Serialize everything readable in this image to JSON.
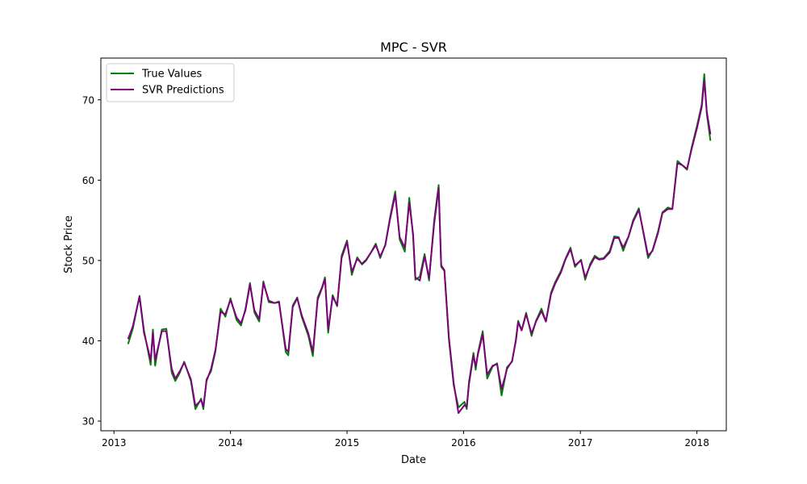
{
  "chart_data": {
    "type": "line",
    "title": "MPC - SVR",
    "xlabel": "Date",
    "ylabel": "Stock Price",
    "xlim": [
      "2012-11-21",
      "2018-04-03"
    ],
    "ylim": [
      28.8,
      75.2
    ],
    "x_ticks": [
      "2013",
      "2014",
      "2015",
      "2016",
      "2017",
      "2018"
    ],
    "y_ticks": [
      30,
      40,
      50,
      60,
      70
    ],
    "grid": false,
    "legend_position": "top-left",
    "series": [
      {
        "name": "True Values",
        "color": "#008000",
        "x": [
          "2013-02-15",
          "2013-03-01",
          "2013-03-22",
          "2013-04-05",
          "2013-04-26",
          "2013-05-03",
          "2013-05-10",
          "2013-05-17",
          "2013-05-31",
          "2013-06-14",
          "2013-07-01",
          "2013-07-12",
          "2013-07-26",
          "2013-08-09",
          "2013-08-30",
          "2013-09-13",
          "2013-10-01",
          "2013-10-08",
          "2013-10-18",
          "2013-11-01",
          "2013-11-15",
          "2013-12-01",
          "2013-12-16",
          "2014-01-01",
          "2014-01-20",
          "2014-02-03",
          "2014-02-17",
          "2014-03-03",
          "2014-03-17",
          "2014-04-01",
          "2014-04-14",
          "2014-05-01",
          "2014-05-19",
          "2014-06-02",
          "2014-06-23",
          "2014-07-01",
          "2014-07-15",
          "2014-07-29",
          "2014-08-12",
          "2014-09-02",
          "2014-09-16",
          "2014-10-01",
          "2014-10-15",
          "2014-10-24",
          "2014-11-03",
          "2014-11-17",
          "2014-12-01",
          "2014-12-15",
          "2015-01-01",
          "2015-01-16",
          "2015-02-02",
          "2015-02-17",
          "2015-03-02",
          "2015-03-17",
          "2015-04-01",
          "2015-04-15",
          "2015-05-01",
          "2015-05-15",
          "2015-06-01",
          "2015-06-15",
          "2015-07-01",
          "2015-07-15",
          "2015-07-27",
          "2015-08-03",
          "2015-08-17",
          "2015-09-01",
          "2015-09-15",
          "2015-10-01",
          "2015-10-15",
          "2015-10-23",
          "2015-11-02",
          "2015-11-16",
          "2015-12-01",
          "2015-12-16",
          "2016-01-04",
          "2016-01-11",
          "2016-01-18",
          "2016-02-01",
          "2016-02-08",
          "2016-02-15",
          "2016-03-01",
          "2016-03-15",
          "2016-04-01",
          "2016-04-15",
          "2016-04-29",
          "2016-05-09",
          "2016-05-16",
          "2016-06-01",
          "2016-06-13",
          "2016-06-20",
          "2016-07-01",
          "2016-07-15",
          "2016-08-01",
          "2016-08-15",
          "2016-09-01",
          "2016-09-15",
          "2016-10-01",
          "2016-10-14",
          "2016-11-01",
          "2016-11-15",
          "2016-12-01",
          "2016-12-15",
          "2017-01-03",
          "2017-01-16",
          "2017-02-01",
          "2017-02-15",
          "2017-03-01",
          "2017-03-15",
          "2017-04-03",
          "2017-04-17",
          "2017-05-01",
          "2017-05-15",
          "2017-06-01",
          "2017-06-15",
          "2017-07-03",
          "2017-07-17",
          "2017-08-01",
          "2017-08-15",
          "2017-09-01",
          "2017-09-15",
          "2017-10-02",
          "2017-10-16",
          "2017-11-01",
          "2017-11-15",
          "2017-12-01",
          "2017-12-15",
          "2018-01-02",
          "2018-01-16",
          "2018-01-24",
          "2018-02-01",
          "2018-02-12"
        ],
        "values": [
          39.7,
          41.5,
          45.6,
          41.3,
          37.0,
          41.4,
          36.9,
          38.6,
          41.4,
          41.5,
          36.0,
          35.0,
          36.0,
          37.4,
          35.0,
          31.5,
          32.8,
          31.5,
          35.2,
          36.2,
          38.7,
          44.0,
          43.0,
          45.3,
          42.6,
          41.9,
          44.0,
          47.2,
          43.5,
          42.4,
          47.4,
          44.8,
          44.7,
          44.9,
          38.6,
          38.2,
          44.4,
          45.4,
          43.0,
          40.6,
          38.1,
          45.4,
          46.7,
          47.9,
          41.0,
          45.7,
          44.3,
          50.6,
          52.5,
          48.2,
          50.4,
          49.5,
          50.0,
          51.0,
          52.1,
          50.3,
          52.0,
          55.2,
          58.6,
          52.6,
          51.1,
          57.8,
          53.0,
          47.6,
          48.0,
          50.8,
          47.5,
          55.0,
          59.4,
          49.2,
          48.7,
          40.2,
          34.5,
          31.7,
          32.4,
          31.5,
          34.9,
          38.5,
          36.4,
          38.5,
          41.2,
          35.3,
          36.8,
          37.2,
          33.2,
          35.2,
          36.7,
          37.4,
          40.2,
          42.5,
          41.3,
          43.5,
          40.6,
          42.5,
          44.0,
          42.4,
          46.0,
          47.3,
          48.7,
          50.2,
          51.6,
          49.2,
          50.1,
          47.6,
          49.6,
          50.6,
          50.2,
          50.3,
          51.2,
          53.0,
          52.9,
          51.2,
          53.0,
          55.0,
          56.5,
          53.5,
          50.3,
          51.3,
          53.6,
          56.0,
          56.6,
          56.4,
          62.4,
          61.9,
          61.3,
          64.0,
          66.9,
          69.4,
          73.2,
          68.2,
          65.0
        ]
      },
      {
        "name": "SVR Predictions",
        "color": "#800080",
        "x": [
          "2013-02-15",
          "2013-03-01",
          "2013-03-22",
          "2013-04-05",
          "2013-04-26",
          "2013-05-03",
          "2013-05-10",
          "2013-05-17",
          "2013-05-31",
          "2013-06-14",
          "2013-07-01",
          "2013-07-12",
          "2013-07-26",
          "2013-08-09",
          "2013-08-30",
          "2013-09-13",
          "2013-10-01",
          "2013-10-08",
          "2013-10-18",
          "2013-11-01",
          "2013-11-15",
          "2013-12-01",
          "2013-12-16",
          "2014-01-01",
          "2014-01-20",
          "2014-02-03",
          "2014-02-17",
          "2014-03-03",
          "2014-03-17",
          "2014-04-01",
          "2014-04-14",
          "2014-05-01",
          "2014-05-19",
          "2014-06-02",
          "2014-06-23",
          "2014-07-01",
          "2014-07-15",
          "2014-07-29",
          "2014-08-12",
          "2014-09-02",
          "2014-09-16",
          "2014-10-01",
          "2014-10-15",
          "2014-10-24",
          "2014-11-03",
          "2014-11-17",
          "2014-12-01",
          "2014-12-15",
          "2015-01-01",
          "2015-01-16",
          "2015-02-02",
          "2015-02-17",
          "2015-03-02",
          "2015-03-17",
          "2015-04-01",
          "2015-04-15",
          "2015-05-01",
          "2015-05-15",
          "2015-06-01",
          "2015-06-15",
          "2015-07-01",
          "2015-07-15",
          "2015-07-27",
          "2015-08-03",
          "2015-08-17",
          "2015-09-01",
          "2015-09-15",
          "2015-10-01",
          "2015-10-15",
          "2015-10-23",
          "2015-11-02",
          "2015-11-16",
          "2015-12-01",
          "2015-12-16",
          "2016-01-04",
          "2016-01-11",
          "2016-01-18",
          "2016-02-01",
          "2016-02-08",
          "2016-02-15",
          "2016-03-01",
          "2016-03-15",
          "2016-04-01",
          "2016-04-15",
          "2016-04-29",
          "2016-05-09",
          "2016-05-16",
          "2016-06-01",
          "2016-06-13",
          "2016-06-20",
          "2016-07-01",
          "2016-07-15",
          "2016-08-01",
          "2016-08-15",
          "2016-09-01",
          "2016-09-15",
          "2016-10-01",
          "2016-10-14",
          "2016-11-01",
          "2016-11-15",
          "2016-12-01",
          "2016-12-15",
          "2017-01-03",
          "2017-01-16",
          "2017-02-01",
          "2017-02-15",
          "2017-03-01",
          "2017-03-15",
          "2017-04-03",
          "2017-04-17",
          "2017-05-01",
          "2017-05-15",
          "2017-06-01",
          "2017-06-15",
          "2017-07-03",
          "2017-07-17",
          "2017-08-01",
          "2017-08-15",
          "2017-09-01",
          "2017-09-15",
          "2017-10-02",
          "2017-10-16",
          "2017-11-01",
          "2017-11-15",
          "2017-12-01",
          "2017-12-15",
          "2018-01-02",
          "2018-01-16",
          "2018-01-24",
          "2018-02-01",
          "2018-02-12"
        ],
        "values": [
          40.3,
          41.8,
          45.5,
          41.0,
          37.6,
          41.0,
          37.6,
          38.8,
          41.2,
          41.2,
          36.5,
          35.3,
          36.2,
          37.3,
          35.2,
          31.9,
          32.6,
          31.8,
          35.0,
          36.5,
          38.9,
          43.6,
          43.3,
          45.1,
          42.9,
          42.2,
          43.8,
          47.0,
          43.8,
          42.7,
          47.2,
          45.0,
          44.7,
          44.8,
          39.0,
          38.6,
          44.2,
          45.3,
          43.2,
          40.9,
          38.6,
          45.1,
          46.6,
          47.7,
          41.4,
          45.5,
          44.4,
          50.3,
          52.3,
          48.6,
          50.2,
          49.6,
          50.1,
          51.0,
          51.9,
          50.5,
          51.9,
          55.0,
          58.2,
          52.9,
          51.6,
          57.2,
          53.3,
          47.9,
          47.5,
          50.5,
          47.8,
          54.6,
          59.0,
          49.4,
          48.8,
          40.5,
          34.8,
          31.0,
          32.0,
          31.8,
          34.6,
          38.2,
          36.8,
          38.3,
          40.8,
          35.8,
          36.9,
          37.1,
          34.0,
          35.4,
          36.5,
          37.5,
          40.0,
          42.3,
          41.3,
          43.3,
          40.9,
          42.4,
          43.7,
          42.4,
          45.8,
          47.1,
          48.5,
          50.1,
          51.4,
          49.4,
          50.0,
          47.9,
          49.4,
          50.4,
          50.1,
          50.2,
          51.0,
          52.8,
          52.8,
          51.6,
          53.0,
          54.8,
          56.3,
          53.6,
          50.6,
          51.2,
          53.4,
          55.9,
          56.4,
          56.4,
          62.1,
          61.9,
          61.4,
          63.8,
          66.6,
          69.1,
          72.4,
          68.5,
          65.8
        ]
      }
    ]
  }
}
